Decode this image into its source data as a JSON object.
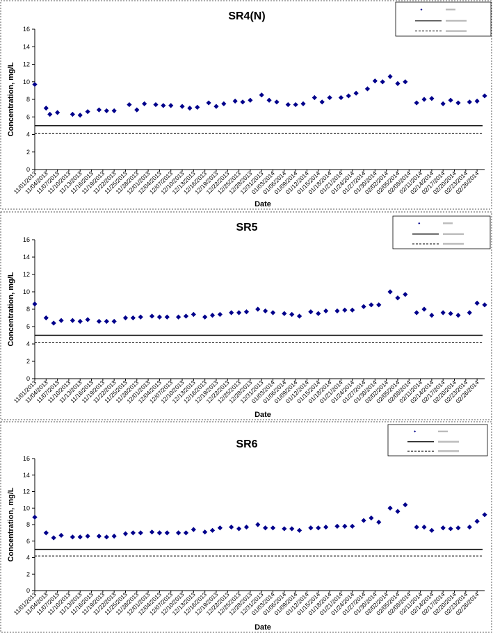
{
  "chart_data": [
    {
      "type": "scatter",
      "title": "SR4(N)",
      "xlabel": "Date",
      "ylabel": "Concentration, mg/L",
      "ylim": [
        0,
        16
      ],
      "yticks": [
        "0",
        "2",
        "4",
        "6",
        "8",
        "10",
        "12",
        "14",
        "16"
      ],
      "xticks": [
        "11/01/2013",
        "11/04/2013",
        "11/07/2013",
        "11/10/2013",
        "11/13/2013",
        "11/16/2013",
        "11/19/2013",
        "11/22/2013",
        "11/25/2013",
        "11/28/2013",
        "12/01/2013",
        "12/04/2013",
        "12/07/2013",
        "12/10/2013",
        "12/13/2013",
        "12/16/2013",
        "12/19/2013",
        "12/22/2013",
        "12/25/2013",
        "12/28/2013",
        "12/31/2013",
        "01/03/2014",
        "01/06/2014",
        "01/09/2014",
        "01/12/2014",
        "01/15/2014",
        "01/18/2014",
        "01/21/2014",
        "01/24/2014",
        "01/27/2014",
        "01/30/2014",
        "02/02/2014",
        "02/05/2014",
        "02/08/2014",
        "02/11/2014",
        "02/14/2014",
        "02/17/2014",
        "02/20/2014",
        "02/23/2014",
        "02/26/2014"
      ],
      "x": [
        "11/01/2013",
        "11/04/2013",
        "11/05/2013",
        "11/07/2013",
        "11/11/2013",
        "11/13/2013",
        "11/15/2013",
        "11/18/2013",
        "11/20/2013",
        "11/22/2013",
        "11/26/2013",
        "11/28/2013",
        "11/30/2013",
        "12/03/2013",
        "12/05/2013",
        "12/07/2013",
        "12/10/2013",
        "12/12/2013",
        "12/14/2013",
        "12/17/2013",
        "12/19/2013",
        "12/21/2013",
        "12/24/2013",
        "12/26/2013",
        "12/28/2013",
        "12/31/2013",
        "01/02/2014",
        "01/04/2014",
        "01/07/2014",
        "01/09/2014",
        "01/11/2014",
        "01/14/2014",
        "01/16/2014",
        "01/18/2014",
        "01/21/2014",
        "01/23/2014",
        "01/25/2014",
        "01/28/2014",
        "01/30/2014",
        "02/01/2014",
        "02/03/2014",
        "02/05/2014",
        "02/07/2014",
        "02/10/2014",
        "02/12/2014",
        "02/14/2014",
        "02/17/2014",
        "02/19/2014",
        "02/21/2014",
        "02/24/2014",
        "02/26/2014",
        "02/28/2014"
      ],
      "series": [
        {
          "name": "",
          "values": [
            9.7,
            7.0,
            6.3,
            6.5,
            6.3,
            6.2,
            6.6,
            6.8,
            6.7,
            6.7,
            7.4,
            6.8,
            7.5,
            7.4,
            7.3,
            7.3,
            7.2,
            7.0,
            7.1,
            7.6,
            7.2,
            7.5,
            7.8,
            7.7,
            7.9,
            8.5,
            7.9,
            7.7,
            7.4,
            7.4,
            7.5,
            8.2,
            7.7,
            8.2,
            8.2,
            8.4,
            8.7,
            9.2,
            10.1,
            10.0,
            10.6,
            9.8,
            10.0,
            7.6,
            8.0,
            8.1,
            7.5,
            7.9,
            7.6,
            7.7,
            7.8,
            8.4
          ]
        }
      ],
      "reference_lines": [
        5.0,
        4.1
      ],
      "legend": "top-right"
    },
    {
      "type": "scatter",
      "title": "SR5",
      "xlabel": "Date",
      "ylabel": "Concentration, mg/L",
      "ylim": [
        0,
        16
      ],
      "yticks": [
        "0",
        "2",
        "4",
        "6",
        "8",
        "10",
        "12",
        "14",
        "16"
      ],
      "xticks": [
        "11/01/2013",
        "11/04/2013",
        "11/07/2013",
        "11/10/2013",
        "11/13/2013",
        "11/16/2013",
        "11/19/2013",
        "11/22/2013",
        "11/25/2013",
        "11/28/2013",
        "12/01/2013",
        "12/04/2013",
        "12/07/2013",
        "12/10/2013",
        "12/13/2013",
        "12/16/2013",
        "12/19/2013",
        "12/22/2013",
        "12/25/2013",
        "12/28/2013",
        "12/31/2013",
        "01/03/2014",
        "01/06/2014",
        "01/09/2014",
        "01/12/2014",
        "01/15/2014",
        "01/18/2014",
        "01/21/2014",
        "01/24/2014",
        "01/27/2014",
        "01/30/2014",
        "02/02/2014",
        "02/05/2014",
        "02/08/2014",
        "02/11/2014",
        "02/14/2014",
        "02/17/2014",
        "02/20/2014",
        "02/23/2014",
        "02/26/2014"
      ],
      "x": [
        "11/01/2013",
        "11/04/2013",
        "11/06/2013",
        "11/08/2013",
        "11/11/2013",
        "11/13/2013",
        "11/15/2013",
        "11/18/2013",
        "11/20/2013",
        "11/22/2013",
        "11/25/2013",
        "11/27/2013",
        "11/29/2013",
        "12/02/2013",
        "12/04/2013",
        "12/06/2013",
        "12/09/2013",
        "12/11/2013",
        "12/13/2013",
        "12/16/2013",
        "12/18/2013",
        "12/20/2013",
        "12/23/2013",
        "12/25/2013",
        "12/27/2013",
        "12/30/2013",
        "01/01/2014",
        "01/03/2014",
        "01/06/2014",
        "01/08/2014",
        "01/10/2014",
        "01/13/2014",
        "01/15/2014",
        "01/17/2014",
        "01/20/2014",
        "01/22/2014",
        "01/24/2014",
        "01/27/2014",
        "01/29/2014",
        "01/31/2014",
        "02/03/2014",
        "02/05/2014",
        "02/07/2014",
        "02/10/2014",
        "02/12/2014",
        "02/14/2014",
        "02/17/2014",
        "02/19/2014",
        "02/21/2014",
        "02/24/2014",
        "02/26/2014",
        "02/28/2014"
      ],
      "series": [
        {
          "name": "",
          "values": [
            8.6,
            7.0,
            6.4,
            6.7,
            6.7,
            6.6,
            6.8,
            6.6,
            6.6,
            6.6,
            7.0,
            7.0,
            7.1,
            7.2,
            7.1,
            7.1,
            7.1,
            7.2,
            7.4,
            7.1,
            7.3,
            7.4,
            7.6,
            7.6,
            7.7,
            8.0,
            7.8,
            7.6,
            7.5,
            7.4,
            7.2,
            7.7,
            7.5,
            7.8,
            7.8,
            7.9,
            7.9,
            8.3,
            8.5,
            8.5,
            10.0,
            9.3,
            9.7,
            7.6,
            8.0,
            7.3,
            7.6,
            7.5,
            7.3,
            7.6,
            8.7,
            8.5
          ]
        }
      ],
      "reference_lines": [
        5.0,
        4.2
      ],
      "legend": "top-right"
    },
    {
      "type": "scatter",
      "title": "SR6",
      "xlabel": "Date",
      "ylabel": "Concentration, mg/L",
      "ylim": [
        0,
        16
      ],
      "yticks": [
        "0",
        "2",
        "4",
        "6",
        "8",
        "10",
        "12",
        "14",
        "16"
      ],
      "xticks": [
        "11/01/2013",
        "11/04/2013",
        "11/07/2013",
        "11/10/2013",
        "11/13/2013",
        "11/16/2013",
        "11/19/2013",
        "11/22/2013",
        "11/25/2013",
        "11/28/2013",
        "12/01/2013",
        "12/04/2013",
        "12/07/2013",
        "12/10/2013",
        "12/13/2013",
        "12/16/2013",
        "12/19/2013",
        "12/22/2013",
        "12/25/2013",
        "12/28/2013",
        "12/31/2013",
        "01/03/2014",
        "01/06/2014",
        "01/09/2014",
        "01/12/2014",
        "01/15/2014",
        "01/18/2014",
        "01/21/2014",
        "01/24/2014",
        "01/27/2014",
        "01/30/2014",
        "02/02/2014",
        "02/05/2014",
        "02/08/2014",
        "02/11/2014",
        "02/14/2014",
        "02/17/2014",
        "02/20/2014",
        "02/23/2014",
        "02/26/2014"
      ],
      "x": [
        "11/01/2013",
        "11/04/2013",
        "11/06/2013",
        "11/08/2013",
        "11/11/2013",
        "11/13/2013",
        "11/15/2013",
        "11/18/2013",
        "11/20/2013",
        "11/22/2013",
        "11/25/2013",
        "11/27/2013",
        "11/29/2013",
        "12/02/2013",
        "12/04/2013",
        "12/06/2013",
        "12/09/2013",
        "12/11/2013",
        "12/13/2013",
        "12/16/2013",
        "12/18/2013",
        "12/20/2013",
        "12/23/2013",
        "12/25/2013",
        "12/27/2013",
        "12/30/2013",
        "01/01/2014",
        "01/03/2014",
        "01/06/2014",
        "01/08/2014",
        "01/10/2014",
        "01/13/2014",
        "01/15/2014",
        "01/17/2014",
        "01/20/2014",
        "01/22/2014",
        "01/24/2014",
        "01/27/2014",
        "01/29/2014",
        "01/31/2014",
        "02/03/2014",
        "02/05/2014",
        "02/07/2014",
        "02/10/2014",
        "02/12/2014",
        "02/14/2014",
        "02/17/2014",
        "02/19/2014",
        "02/21/2014",
        "02/24/2014",
        "02/26/2014",
        "02/28/2014"
      ],
      "series": [
        {
          "name": "",
          "values": [
            8.9,
            7.0,
            6.4,
            6.7,
            6.5,
            6.5,
            6.6,
            6.6,
            6.5,
            6.6,
            6.9,
            7.0,
            7.0,
            7.1,
            7.0,
            7.0,
            7.0,
            7.0,
            7.4,
            7.1,
            7.3,
            7.6,
            7.7,
            7.5,
            7.7,
            8.0,
            7.6,
            7.6,
            7.5,
            7.5,
            7.3,
            7.6,
            7.6,
            7.7,
            7.8,
            7.8,
            7.8,
            8.5,
            8.8,
            8.3,
            10.0,
            9.6,
            10.4,
            7.7,
            7.7,
            7.3,
            7.6,
            7.5,
            7.6,
            7.7,
            8.4,
            9.2
          ]
        }
      ],
      "reference_lines": [
        5.0,
        4.2
      ],
      "legend": "top-right"
    }
  ]
}
